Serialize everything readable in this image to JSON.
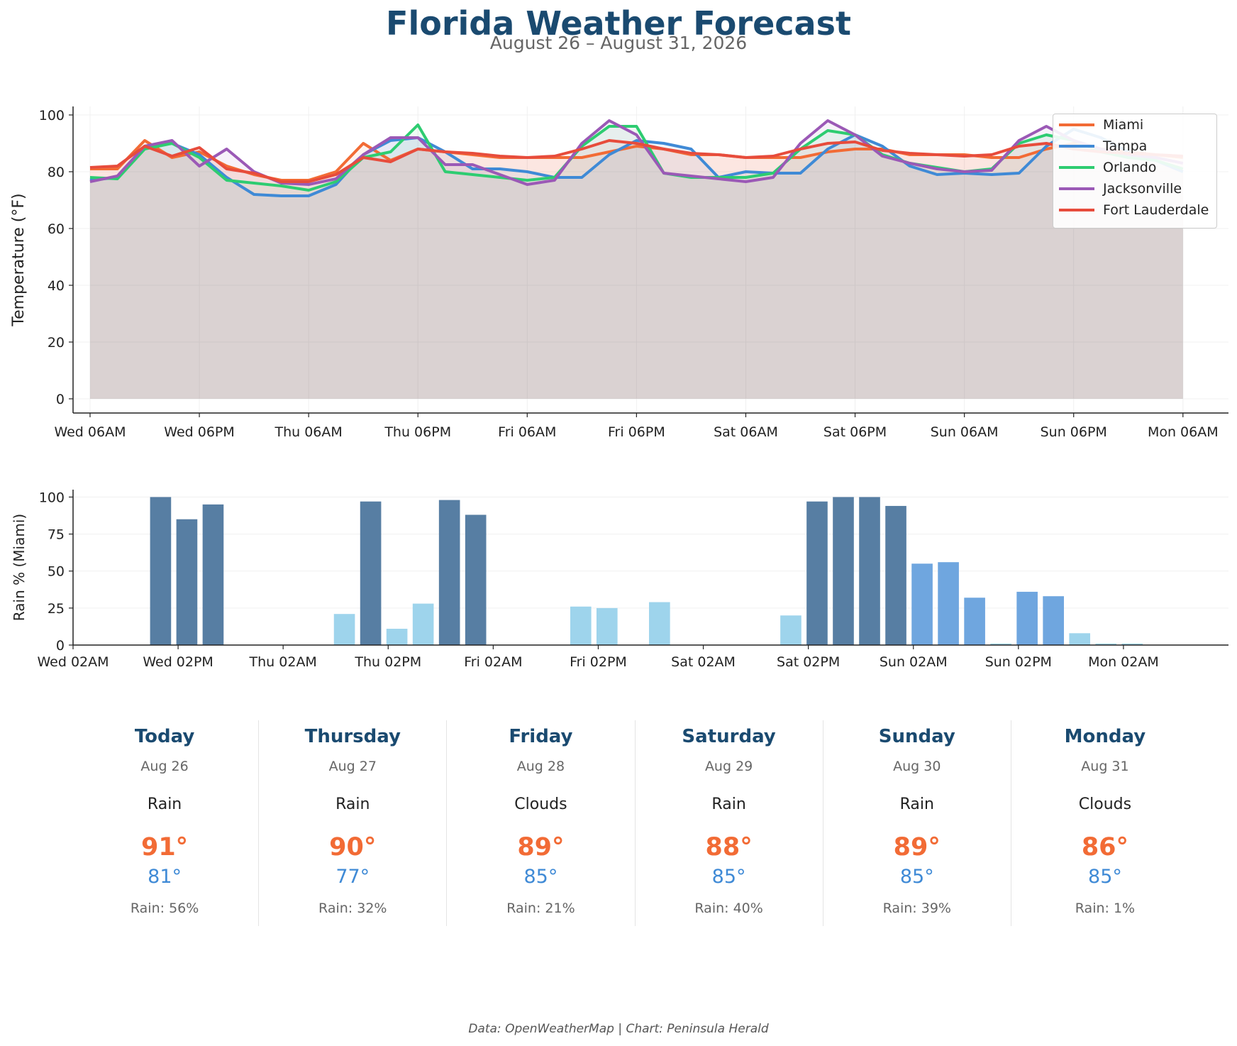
{
  "title": "Florida Weather Forecast",
  "subtitle": "August 26 – August 31, 2026",
  "credit": "Data: OpenWeatherMap | Chart: Peninsula Herald",
  "chart_data": [
    {
      "type": "line",
      "ylabel": "Temperature (°F)",
      "xlabel": "",
      "ylim": [
        -5,
        103
      ],
      "x_unit": "hours from Wed 06AM",
      "xlim": [
        -2.8,
        187.5
      ],
      "yticks": [
        0,
        20,
        40,
        60,
        80,
        100
      ],
      "xticks": [
        {
          "h": 0,
          "label": "Wed 06AM"
        },
        {
          "h": 18,
          "label": "Wed 06PM"
        },
        {
          "h": 36,
          "label": "Thu 06AM"
        },
        {
          "h": 54,
          "label": "Thu 06PM"
        },
        {
          "h": 72,
          "label": "Fri 06AM"
        },
        {
          "h": 90,
          "label": "Fri 06PM"
        },
        {
          "h": 108,
          "label": "Sat 06AM"
        },
        {
          "h": 126,
          "label": "Sat 06PM"
        },
        {
          "h": 144,
          "label": "Sun 06AM"
        },
        {
          "h": 162,
          "label": "Sun 06PM"
        },
        {
          "h": 180,
          "label": "Mon 06AM"
        }
      ],
      "x": [
        0,
        4.5,
        9,
        13.5,
        18,
        22.5,
        27,
        31.5,
        36,
        40.5,
        45,
        49.5,
        54,
        58.5,
        63,
        67.5,
        72,
        76.5,
        81,
        85.5,
        90,
        94.5,
        99,
        103.5,
        108,
        112.5,
        117,
        121.5,
        126,
        130.5,
        135,
        139.5,
        144,
        148.5,
        153,
        157.5,
        162,
        166.5,
        171,
        175.5,
        180
      ],
      "grid": true,
      "legend": "top-right",
      "series": [
        {
          "name": "Miami",
          "color": "#f26b35",
          "values": [
            81,
            81,
            91,
            85,
            87,
            82,
            79,
            77,
            77,
            80,
            90,
            84,
            88,
            87,
            86,
            85,
            85,
            85,
            85,
            87,
            89,
            88,
            86,
            86,
            85,
            85,
            85,
            87,
            88,
            88,
            86,
            86,
            86,
            85,
            85,
            88,
            90,
            88,
            87,
            86,
            85
          ]
        },
        {
          "name": "Tampa",
          "color": "#3f8ad6",
          "values": [
            77,
            78,
            89,
            90,
            86,
            78,
            72,
            71.5,
            71.5,
            75.5,
            86,
            91,
            92,
            87,
            81,
            81,
            80,
            78,
            78,
            86,
            91,
            90,
            88,
            78,
            80,
            79.5,
            79.5,
            88,
            93,
            89,
            82,
            79,
            79.5,
            79,
            79.5,
            89,
            95,
            92,
            87,
            84,
            80
          ]
        },
        {
          "name": "Orlando",
          "color": "#2ecc71",
          "values": [
            78,
            77.5,
            88,
            90,
            85,
            77,
            76,
            75,
            73.5,
            76.5,
            85,
            87,
            96.5,
            80,
            79,
            78,
            77,
            78,
            89,
            96,
            96,
            79.5,
            78,
            78,
            78,
            79.5,
            88,
            94.5,
            93,
            86,
            83,
            81.5,
            80,
            81,
            90,
            93,
            91,
            87,
            85,
            84,
            81
          ]
        },
        {
          "name": "Jacksonville",
          "color": "#9b59b6",
          "values": [
            76.5,
            78.5,
            89,
            91,
            82,
            88,
            80,
            76,
            75.5,
            77.5,
            86,
            92,
            92,
            82.5,
            82.5,
            79,
            75.5,
            77,
            90,
            98,
            93,
            79.5,
            78.5,
            77.5,
            76.5,
            78,
            90,
            98,
            93,
            85.5,
            83,
            81,
            80,
            80.5,
            91,
            96,
            91,
            88,
            86,
            85,
            83
          ]
        },
        {
          "name": "Fort Lauderdale",
          "color": "#e74c3c",
          "values": [
            81.5,
            82,
            89,
            85.5,
            88.5,
            81,
            79.5,
            76.5,
            76.5,
            79,
            85,
            83.5,
            88,
            87,
            86.5,
            85.5,
            85,
            85.5,
            88,
            91,
            90,
            88,
            86.5,
            86,
            85,
            85.5,
            88,
            90,
            90.5,
            87.5,
            86.5,
            86,
            85.5,
            86,
            89,
            90,
            88,
            87,
            86.5,
            86,
            85.5
          ]
        }
      ]
    },
    {
      "type": "bar",
      "ylabel": "Rain % (Miami)",
      "xlabel": "",
      "ylim": [
        0,
        105
      ],
      "x_unit": "hours from Wed 02AM",
      "xlim": [
        0,
        198
      ],
      "yticks": [
        0,
        25,
        50,
        75,
        100
      ],
      "xticks": [
        {
          "h": 0,
          "label": "Wed 02AM"
        },
        {
          "h": 18,
          "label": "Wed 02PM"
        },
        {
          "h": 36,
          "label": "Thu 02AM"
        },
        {
          "h": 54,
          "label": "Thu 02PM"
        },
        {
          "h": 72,
          "label": "Fri 02AM"
        },
        {
          "h": 90,
          "label": "Fri 02PM"
        },
        {
          "h": 108,
          "label": "Sat 02AM"
        },
        {
          "h": 126,
          "label": "Sat 02PM"
        },
        {
          "h": 144,
          "label": "Sun 02AM"
        },
        {
          "h": 162,
          "label": "Sun 02PM"
        },
        {
          "h": 180,
          "label": "Mon 02AM"
        }
      ],
      "legend_colors": {
        "high": "#577ea3",
        "medium": "#6fa6df",
        "low": "#9ed4ec"
      },
      "bars": [
        {
          "h": 15,
          "value": 100,
          "level": "high"
        },
        {
          "h": 19.5,
          "value": 85,
          "level": "high"
        },
        {
          "h": 24,
          "value": 95,
          "level": "high"
        },
        {
          "h": 46.5,
          "value": 21,
          "level": "low"
        },
        {
          "h": 51,
          "value": 97,
          "level": "high"
        },
        {
          "h": 55.5,
          "value": 11,
          "level": "low"
        },
        {
          "h": 60,
          "value": 28,
          "level": "low"
        },
        {
          "h": 64.5,
          "value": 98,
          "level": "high"
        },
        {
          "h": 69,
          "value": 88,
          "level": "high"
        },
        {
          "h": 87,
          "value": 26,
          "level": "low"
        },
        {
          "h": 91.5,
          "value": 25,
          "level": "low"
        },
        {
          "h": 100.5,
          "value": 29,
          "level": "low"
        },
        {
          "h": 123,
          "value": 20,
          "level": "low"
        },
        {
          "h": 127.5,
          "value": 97,
          "level": "high"
        },
        {
          "h": 132,
          "value": 100,
          "level": "high"
        },
        {
          "h": 136.5,
          "value": 100,
          "level": "high"
        },
        {
          "h": 141,
          "value": 94,
          "level": "high"
        },
        {
          "h": 145.5,
          "value": 55,
          "level": "medium"
        },
        {
          "h": 150,
          "value": 56,
          "level": "medium"
        },
        {
          "h": 154.5,
          "value": 32,
          "level": "medium"
        },
        {
          "h": 159,
          "value": 1,
          "level": "low"
        },
        {
          "h": 163.5,
          "value": 36,
          "level": "medium"
        },
        {
          "h": 168,
          "value": 33,
          "level": "medium"
        },
        {
          "h": 172.5,
          "value": 8,
          "level": "low"
        },
        {
          "h": 177,
          "value": 1,
          "level": "low"
        },
        {
          "h": 181.5,
          "value": 1,
          "level": "low"
        }
      ]
    }
  ],
  "forecast": [
    {
      "day": "Today",
      "date": "Aug 26",
      "condition": "Rain",
      "high": "91°",
      "low": "81°",
      "rain": "Rain: 56%"
    },
    {
      "day": "Thursday",
      "date": "Aug 27",
      "condition": "Rain",
      "high": "90°",
      "low": "77°",
      "rain": "Rain: 32%"
    },
    {
      "day": "Friday",
      "date": "Aug 28",
      "condition": "Clouds",
      "high": "89°",
      "low": "85°",
      "rain": "Rain: 21%"
    },
    {
      "day": "Saturday",
      "date": "Aug 29",
      "condition": "Rain",
      "high": "88°",
      "low": "85°",
      "rain": "Rain: 40%"
    },
    {
      "day": "Sunday",
      "date": "Aug 30",
      "condition": "Rain",
      "high": "89°",
      "low": "85°",
      "rain": "Rain: 39%"
    },
    {
      "day": "Monday",
      "date": "Aug 31",
      "condition": "Clouds",
      "high": "86°",
      "low": "85°",
      "rain": "Rain: 1%"
    }
  ]
}
